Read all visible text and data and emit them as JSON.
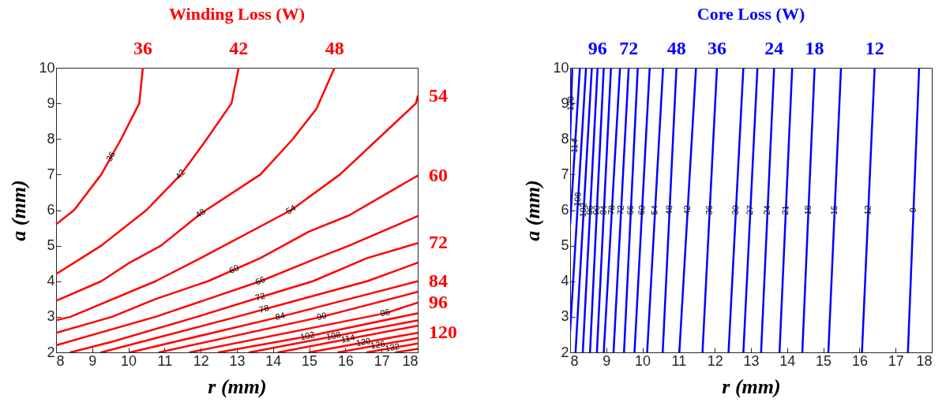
{
  "chart_data": [
    {
      "type": "line",
      "title": "Winding Loss (W)",
      "xlabel": "r (mm)",
      "ylabel": "a (mm)",
      "xlim": [
        8,
        18
      ],
      "ylim": [
        2,
        10
      ],
      "xticks": [
        8,
        9,
        10,
        11,
        12,
        13,
        14,
        15,
        16,
        17,
        18
      ],
      "yticks": [
        2,
        3,
        4,
        5,
        6,
        7,
        8,
        9,
        10
      ],
      "series": [
        {
          "name": "36",
          "color": "#ff0000",
          "x": [
            8,
            8.5,
            9.25,
            9.8,
            10.3,
            10.4
          ],
          "values": [
            5.6,
            6,
            7,
            8,
            9,
            10
          ]
        },
        {
          "name": "42",
          "color": "#ff0000",
          "x": [
            8,
            9.25,
            10.5,
            11.45,
            12.1,
            12.85,
            13.05
          ],
          "values": [
            4.2,
            5,
            6,
            7,
            7.9,
            9,
            10
          ]
        },
        {
          "name": "48",
          "color": "#ff0000",
          "x": [
            8,
            9.25,
            10,
            10.9,
            12,
            13.65,
            14.55,
            15.2,
            15.7
          ],
          "values": [
            3.45,
            4,
            4.5,
            5,
            5.9,
            7,
            8,
            8.85,
            10
          ]
        },
        {
          "name": "54",
          "color": "#ff0000",
          "x": [
            8,
            8.4,
            10.75,
            12,
            14.5,
            15.85,
            16.9,
            17.95,
            18
          ],
          "values": [
            2.9,
            3,
            4,
            4.65,
            6,
            7,
            8,
            9,
            9.2
          ]
        },
        {
          "name": "60",
          "color": "#ff0000",
          "x": [
            8,
            9.55,
            10.75,
            12.2,
            13.65,
            15,
            16.1,
            18
          ],
          "values": [
            2.55,
            3,
            3.5,
            4,
            4.65,
            5.4,
            5.85,
            6.97
          ]
        },
        {
          "name": "66",
          "color": "#ff0000",
          "x": [
            8,
            10.75,
            12.2,
            13.65,
            15.1,
            16.1,
            18
          ],
          "values": [
            2.2,
            3,
            3.5,
            4,
            4.6,
            5,
            5.83
          ]
        },
        {
          "name": "72",
          "color": "#ff0000",
          "x": [
            8.4,
            9.55,
            11.9,
            13.65,
            15.1,
            16.6,
            18
          ],
          "values": [
            2,
            2.3,
            3,
            3.55,
            4,
            4.65,
            5.07
          ]
        },
        {
          "name": "78",
          "color": "#ff0000",
          "x": [
            9.25,
            10.75,
            13,
            14.5,
            16.6,
            18
          ],
          "values": [
            2,
            2.4,
            3,
            3.42,
            4,
            4.52
          ]
        },
        {
          "name": "84",
          "color": "#ff0000",
          "x": [
            10.05,
            14.2,
            18
          ],
          "values": [
            2,
            3,
            4
          ]
        },
        {
          "name": "90",
          "color": "#ff0000",
          "x": [
            10.85,
            15.35,
            18
          ],
          "values": [
            2,
            3,
            3.7
          ]
        },
        {
          "name": "96",
          "color": "#ff0000",
          "x": [
            11.7,
            17.1,
            18
          ],
          "values": [
            2,
            3.1,
            3.4
          ]
        },
        {
          "name": "102",
          "color": "#ff0000",
          "x": [
            12.5,
            14.95,
            18
          ],
          "values": [
            2,
            2.45,
            3.1
          ]
        },
        {
          "name": "108",
          "color": "#ff0000",
          "x": [
            13.35,
            18
          ],
          "values": [
            2,
            2.9
          ]
        },
        {
          "name": "114",
          "color": "#ff0000",
          "x": [
            14.15,
            18
          ],
          "values": [
            2,
            2.75
          ]
        },
        {
          "name": "120",
          "color": "#ff0000",
          "x": [
            15,
            18
          ],
          "values": [
            2,
            2.55
          ]
        },
        {
          "name": "126",
          "color": "#ff0000",
          "x": [
            15.8,
            18
          ],
          "values": [
            2,
            2.4
          ]
        },
        {
          "name": "132",
          "color": "#ff0000",
          "x": [
            16.6,
            18
          ],
          "values": [
            2,
            2.25
          ]
        },
        {
          "color": "#ff0000",
          "x": [
            17.4,
            18
          ],
          "values": [
            2,
            2.1
          ]
        }
      ],
      "annotations": [
        {
          "text": "36",
          "x": 10.4,
          "y": 10
        },
        {
          "text": "42",
          "x": 13.05,
          "y": 10
        },
        {
          "text": "48",
          "x": 15.7,
          "y": 10
        },
        {
          "text": "54",
          "x": 18,
          "y": 9.2
        },
        {
          "text": "60",
          "x": 18,
          "y": 6.97
        },
        {
          "text": "72",
          "x": 18,
          "y": 5.07
        },
        {
          "text": "84",
          "x": 18,
          "y": 4
        },
        {
          "text": "96",
          "x": 18,
          "y": 3.4
        },
        {
          "text": "120",
          "x": 18,
          "y": 2.55
        }
      ]
    },
    {
      "type": "line",
      "title": "Core Loss (W)",
      "xlabel": "r (mm)",
      "ylabel": "a (mm)",
      "xlim": [
        8,
        18
      ],
      "ylim": [
        2,
        10
      ],
      "xticks": [
        8,
        9,
        10,
        11,
        12,
        13,
        14,
        15,
        16,
        17,
        18
      ],
      "yticks": [
        2,
        3,
        4,
        5,
        6,
        7,
        8,
        9,
        10
      ],
      "series": [
        {
          "name": "9",
          "color": "#0000ff",
          "x": [
            17.34,
            17.65
          ],
          "values": [
            2,
            10
          ]
        },
        {
          "name": "12",
          "color": "#0000ff",
          "x": [
            16.07,
            16.42
          ],
          "values": [
            2,
            10
          ]
        },
        {
          "name": "15",
          "color": "#0000ff",
          "x": [
            15.14,
            15.49
          ],
          "values": [
            2,
            10
          ]
        },
        {
          "name": "18",
          "color": "#0000ff",
          "x": [
            14.42,
            14.76
          ],
          "values": [
            2,
            10
          ]
        },
        {
          "name": "21",
          "color": "#0000ff",
          "x": [
            13.79,
            14.14
          ],
          "values": [
            2,
            10
          ]
        },
        {
          "name": "24",
          "color": "#0000ff",
          "x": [
            13.28,
            13.64
          ],
          "values": [
            2,
            10
          ]
        },
        {
          "name": "27",
          "color": "#0000ff",
          "x": [
            12.79,
            13.18
          ],
          "values": [
            2,
            10
          ]
        },
        {
          "name": "30",
          "color": "#0000ff",
          "x": [
            12.38,
            12.79
          ],
          "values": [
            2,
            10
          ]
        },
        {
          "name": "36",
          "color": "#0000ff",
          "x": [
            11.66,
            12.06
          ],
          "values": [
            2,
            10
          ]
        },
        {
          "name": "42",
          "color": "#0000ff",
          "x": [
            11.02,
            11.48
          ],
          "values": [
            2,
            10
          ]
        },
        {
          "name": "48",
          "color": "#0000ff",
          "x": [
            10.56,
            10.94
          ],
          "values": [
            2,
            10
          ]
        },
        {
          "name": "54",
          "color": "#0000ff",
          "x": [
            10.13,
            10.57
          ],
          "values": [
            2,
            10
          ]
        },
        {
          "name": "60",
          "color": "#0000ff",
          "x": [
            9.78,
            10.2
          ],
          "values": [
            2,
            10
          ]
        },
        {
          "name": "66",
          "color": "#0000ff",
          "x": [
            9.49,
            9.87
          ],
          "values": [
            2,
            10
          ]
        },
        {
          "name": "72",
          "color": "#0000ff",
          "x": [
            9.2,
            9.62
          ],
          "values": [
            2,
            10
          ]
        },
        {
          "name": "78",
          "color": "#0000ff",
          "x": [
            8.93,
            9.38
          ],
          "values": [
            2,
            10
          ]
        },
        {
          "name": "84",
          "color": "#0000ff",
          "x": [
            8.74,
            9.13
          ],
          "values": [
            2,
            10
          ]
        },
        {
          "name": "90",
          "color": "#0000ff",
          "x": [
            8.55,
            8.93
          ],
          "values": [
            2,
            10
          ]
        },
        {
          "name": "96",
          "color": "#0000ff",
          "x": [
            8.35,
            8.76
          ],
          "values": [
            2,
            10
          ]
        },
        {
          "name": "102",
          "color": "#0000ff",
          "x": [
            8.15,
            8.6
          ],
          "values": [
            2,
            10
          ]
        },
        {
          "name": "108",
          "color": "#0000ff",
          "x": [
            8,
            8.44
          ],
          "values": [
            2.6,
            10
          ]
        },
        {
          "name": "114",
          "color": "#0000ff",
          "x": [
            8,
            8.27
          ],
          "values": [
            5.6,
            10
          ]
        },
        {
          "name": "120",
          "color": "#0000ff",
          "x": [
            8,
            8.06
          ],
          "values": [
            8,
            10
          ]
        }
      ],
      "annotations": [
        {
          "text": "96",
          "x": 8.76,
          "y": 10
        },
        {
          "text": "72",
          "x": 9.62,
          "y": 10
        },
        {
          "text": "48",
          "x": 10.94,
          "y": 10
        },
        {
          "text": "36",
          "x": 12.06,
          "y": 10
        },
        {
          "text": "24",
          "x": 13.64,
          "y": 10
        },
        {
          "text": "18",
          "x": 14.76,
          "y": 10
        },
        {
          "text": "12",
          "x": 16.42,
          "y": 10
        }
      ]
    }
  ]
}
